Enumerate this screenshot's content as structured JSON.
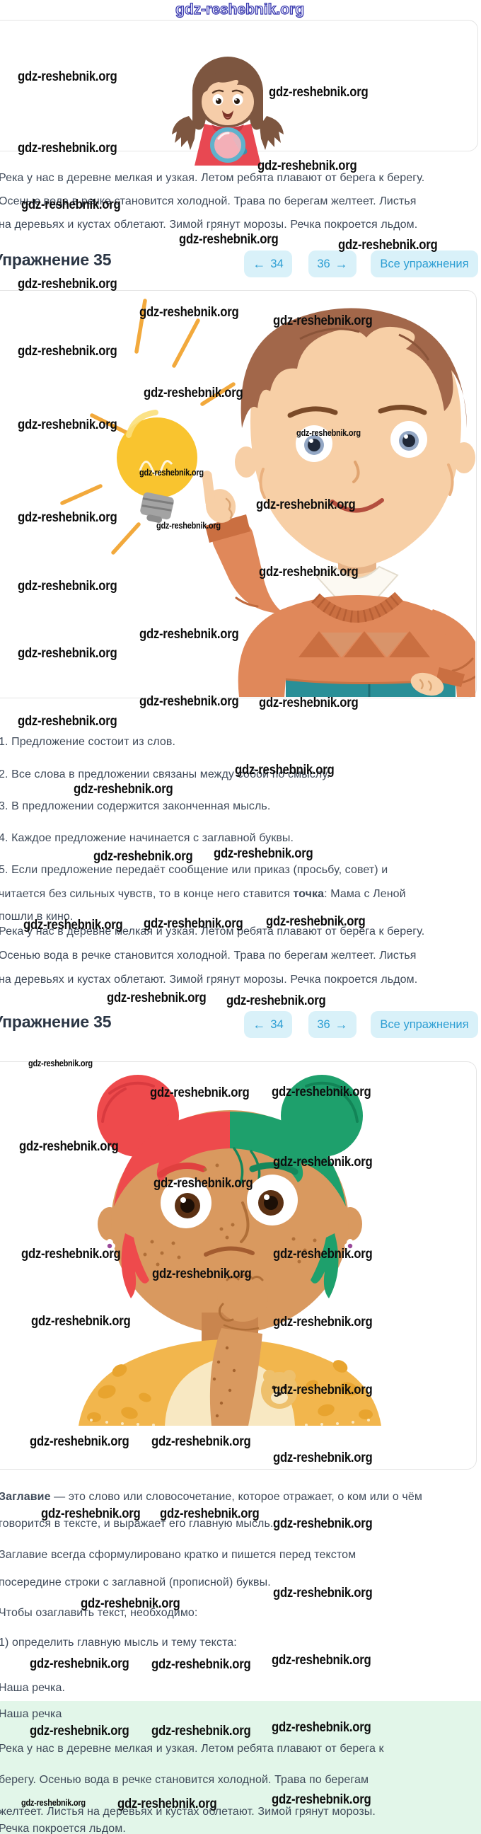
{
  "page": {
    "top_watermark": "gdz-reshebnik.org"
  },
  "watermarks": {
    "text": "gdz-reshebnik.org",
    "instances": [
      [
        25,
        98,
        "n"
      ],
      [
        380,
        120,
        "n"
      ],
      [
        25,
        199,
        "n"
      ],
      [
        364,
        224,
        "n"
      ],
      [
        30,
        279,
        "n"
      ],
      [
        253,
        328,
        "n"
      ],
      [
        478,
        336,
        "n"
      ],
      [
        25,
        391,
        "n"
      ],
      [
        197,
        431,
        "n"
      ],
      [
        386,
        443,
        "n"
      ],
      [
        25,
        486,
        "n"
      ],
      [
        203,
        545,
        "n"
      ],
      [
        25,
        590,
        "n"
      ],
      [
        419,
        605,
        "s"
      ],
      [
        197,
        661,
        "s"
      ],
      [
        362,
        703,
        "n"
      ],
      [
        25,
        721,
        "n"
      ],
      [
        221,
        736,
        "s"
      ],
      [
        366,
        798,
        "n"
      ],
      [
        25,
        818,
        "n"
      ],
      [
        197,
        886,
        "n"
      ],
      [
        25,
        913,
        "n"
      ],
      [
        197,
        981,
        "n"
      ],
      [
        366,
        983,
        "n"
      ],
      [
        25,
        1009,
        "n"
      ],
      [
        332,
        1078,
        "n"
      ],
      [
        104,
        1105,
        "n"
      ],
      [
        132,
        1200,
        "n"
      ],
      [
        302,
        1196,
        "n"
      ],
      [
        33,
        1297,
        "n"
      ],
      [
        203,
        1295,
        "n"
      ],
      [
        376,
        1292,
        "n"
      ],
      [
        151,
        1400,
        "n"
      ],
      [
        320,
        1404,
        "n"
      ],
      [
        40,
        1496,
        "s"
      ],
      [
        212,
        1534,
        "n"
      ],
      [
        384,
        1533,
        "n"
      ],
      [
        27,
        1610,
        "n"
      ],
      [
        386,
        1632,
        "n"
      ],
      [
        217,
        1662,
        "n"
      ],
      [
        30,
        1762,
        "n"
      ],
      [
        386,
        1762,
        "n"
      ],
      [
        215,
        1790,
        "n"
      ],
      [
        44,
        1857,
        "n"
      ],
      [
        386,
        1858,
        "n"
      ],
      [
        386,
        1954,
        "n"
      ],
      [
        42,
        2027,
        "n"
      ],
      [
        214,
        2027,
        "n"
      ],
      [
        386,
        2050,
        "n"
      ],
      [
        58,
        2129,
        "n"
      ],
      [
        226,
        2129,
        "n"
      ],
      [
        386,
        2143,
        "n"
      ],
      [
        114,
        2256,
        "n"
      ],
      [
        386,
        2241,
        "n"
      ],
      [
        42,
        2341,
        "n"
      ],
      [
        214,
        2342,
        "n"
      ],
      [
        384,
        2336,
        "n"
      ],
      [
        42,
        2436,
        "n"
      ],
      [
        214,
        2436,
        "n"
      ],
      [
        384,
        2431,
        "n"
      ],
      [
        30,
        2541,
        "s"
      ],
      [
        166,
        2539,
        "n"
      ],
      [
        384,
        2533,
        "n"
      ]
    ]
  },
  "intro_text": {
    "line1": "Река у нас в деревне мелкая и узкая. Летом ребята плавают от берега к берегу.",
    "line2": "Осенью вода в речке становится холодной. Трава по берегам желтеет. Листья",
    "line3": "на деревьях и кустах облетают. Зимой грянут морозы. Речка покроется льдом."
  },
  "exercise": {
    "title": "Упражнение 35",
    "nav": {
      "prev_arrow": "←",
      "prev": "34",
      "next": "36",
      "next_arrow": "→",
      "all": "Все упражнения"
    }
  },
  "rules": {
    "item1": "1. Предложение состоит из слов.",
    "item2": "2. Все слова в предложении связаны между собой по смыслу.",
    "item3": "3. В предложении содержится законченная мысль.",
    "item4": "4. Каждое предложение начинается с заглавной буквы.",
    "item5_line1": "5. Если предложение передаёт сообщение или приказ (просьбу, совет) и",
    "item5_line2_pre": "читается без сильных чувств, то в конце него ставится ",
    "item5_line2_bold": "точка",
    "item5_line2_post": ": Мама с Леной",
    "item5_line3": "пошли в кино."
  },
  "title_rules": {
    "line1_bold": "Заглавие",
    "line1_rest": " — это слово или словосочетание, которое отражает, о ком или о чём",
    "line2": "говорится в тексте, и выражает его главную мысль.",
    "line3": "Заглавие всегда сформулировано кратко и пишется перед текстом",
    "line4": "посередине строки с заглавной (прописной) буквы.",
    "line5": "Чтобы озаглавить текст, необходимо:",
    "line6": "1) определить главную мысль и тему текста:",
    "line7": "Наша речка."
  },
  "answer": {
    "title": "Наша речка",
    "line1": "Река у нас в деревне мелкая и узкая. Летом ребята плавают от берега к",
    "line2": "берегу. Осенью вода в речке становится холодной. Трава по берегам",
    "line3": "желтеет. Листья на деревьях и кустах облетают. Зимой грянут морозы.",
    "line4": "Речка покроется льдом."
  },
  "colors": {
    "accent_blue": "#2d9ed3",
    "button_bg": "#d9f1f9",
    "answer_bg": "#e2f6e9",
    "text": "#3f4a59",
    "watermark_blue": "#3e3eb0"
  }
}
